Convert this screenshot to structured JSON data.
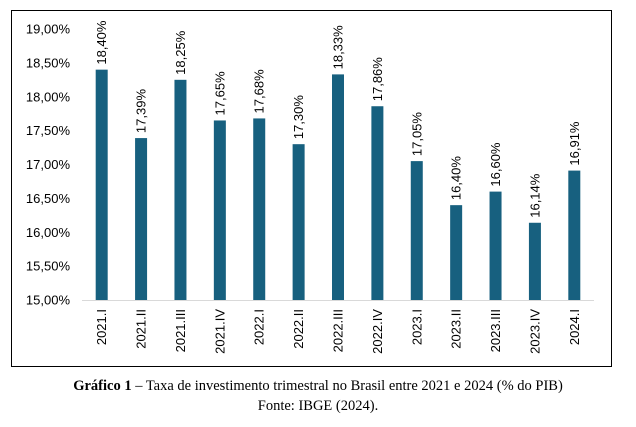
{
  "chart_data": {
    "type": "bar",
    "categories": [
      "2021.I",
      "2021.II",
      "2021.III",
      "2021.IV",
      "2022.I",
      "2022.II",
      "2022.III",
      "2022.IV",
      "2023.I",
      "2023.II",
      "2023.III",
      "2023.IV",
      "2024.I"
    ],
    "values": [
      18.4,
      17.39,
      18.25,
      17.65,
      17.68,
      17.3,
      18.33,
      17.86,
      17.05,
      16.4,
      16.6,
      16.14,
      16.91
    ],
    "data_labels": [
      "18,40%",
      "17,39%",
      "18,25%",
      "17,65%",
      "17,68%",
      "17,30%",
      "18,33%",
      "17,86%",
      "17,05%",
      "16,40%",
      "16,60%",
      "16,14%",
      "16,91%"
    ],
    "ylim": [
      15.0,
      19.0
    ],
    "yticks": [
      19.0,
      18.5,
      18.0,
      17.5,
      17.0,
      16.5,
      16.0,
      15.5,
      15.0
    ],
    "ytick_labels": [
      "19,00%",
      "18,50%",
      "18,00%",
      "17,50%",
      "17,00%",
      "16,50%",
      "16,00%",
      "15,50%",
      "15,00%"
    ],
    "bar_color": "#17607f",
    "grid": false,
    "legend": "none"
  },
  "caption": {
    "label": "Gráfico 1",
    "text": " – Taxa de investimento trimestral no Brasil entre 2021 e 2024 (% do PIB)",
    "source": "Fonte: IBGE (2024)."
  }
}
